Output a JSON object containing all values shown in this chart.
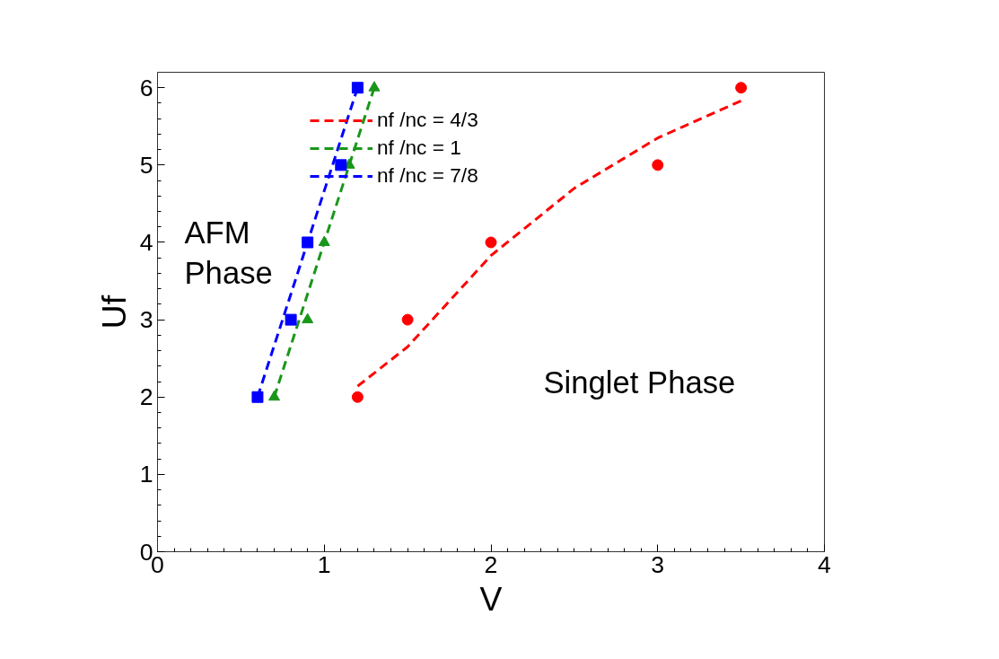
{
  "chart_data": {
    "type": "scatter",
    "xlabel": "V",
    "ylabel": "Uf",
    "xlim": [
      0,
      4
    ],
    "xticks": [
      0,
      1,
      2,
      3,
      4
    ],
    "ylim": [
      0,
      6.2
    ],
    "yticks": [
      0,
      1,
      2,
      3,
      4,
      5,
      6
    ],
    "grid": false,
    "legend": "top",
    "line_style": "dashed",
    "annotations": [
      "AFM\nPhase",
      "Singlet Phase"
    ],
    "series": [
      {
        "type": "line",
        "name": "nf /nc = 4/3",
        "color": "#ff0000",
        "x": [
          1.2,
          1.5,
          2.0,
          2.5,
          3.0,
          3.5
        ],
        "values": [
          2.14,
          2.65,
          3.83,
          4.7,
          5.35,
          5.83
        ]
      },
      {
        "type": "line",
        "name": "nf /nc = 1",
        "color": "#1a961a",
        "x": [
          0.7,
          1.3
        ],
        "values": [
          2.0,
          6.0
        ]
      },
      {
        "type": "line",
        "name": "nf /nc = 7/8",
        "color": "#0000ff",
        "x": [
          0.6,
          1.2
        ],
        "values": [
          2.0,
          6.0
        ]
      },
      {
        "marker": "circle",
        "color": "#ff0000",
        "x": [
          1.2,
          1.5,
          2,
          3,
          3.5
        ],
        "values": [
          2,
          3,
          4,
          5,
          6
        ]
      },
      {
        "marker": "triangle",
        "color": "#1a961a",
        "x": [
          0.7,
          0.9,
          1.0,
          1.15,
          1.3
        ],
        "values": [
          2,
          3,
          4,
          5,
          6
        ]
      },
      {
        "marker": "square",
        "color": "#0000ff",
        "x": [
          0.6,
          0.8,
          0.9,
          1.1,
          1.2
        ],
        "values": [
          2,
          3,
          4,
          5,
          6
        ]
      }
    ]
  }
}
